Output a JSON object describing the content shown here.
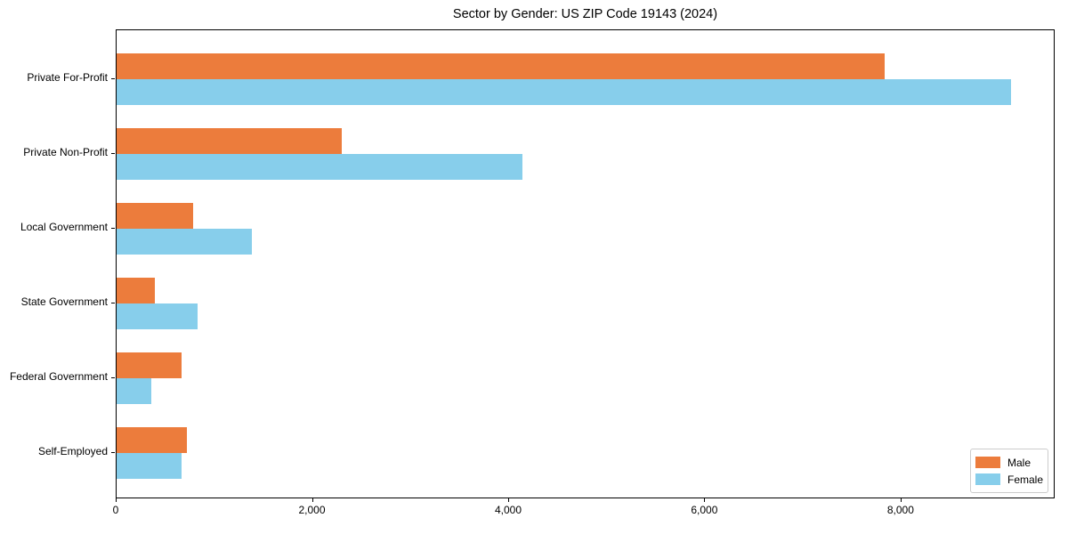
{
  "figure": {
    "title": "Sector by Gender: US ZIP Code 19143 (2024)"
  },
  "chart_data": {
    "type": "bar",
    "orientation": "horizontal",
    "title": "Sector by Gender: US ZIP Code 19143 (2024)",
    "categories": [
      "Private For-Profit",
      "Private Non-Profit",
      "Local Government",
      "State Government",
      "Federal Government",
      "Self-Employed"
    ],
    "series": [
      {
        "name": "Male",
        "color": "#EC7C3C",
        "values": [
          7830,
          2295,
          780,
          390,
          660,
          715
        ]
      },
      {
        "name": "Female",
        "color": "#87CEEB",
        "values": [
          9113,
          4135,
          1380,
          825,
          355,
          660
        ]
      }
    ],
    "xlabel": "",
    "ylabel": "",
    "xlim": [
      0,
      9570
    ],
    "xticks": {
      "values": [
        0,
        2000,
        4000,
        6000,
        8000
      ],
      "labels": [
        "0",
        "2,000",
        "4,000",
        "6,000",
        "8,000"
      ]
    },
    "grid": false,
    "legend": {
      "position": "lower right",
      "entries": [
        "Male",
        "Female"
      ]
    },
    "colors": {
      "male": "#EC7C3C",
      "female": "#87CEEB",
      "axis": "#000000",
      "legend_border": "#cccccc"
    }
  }
}
